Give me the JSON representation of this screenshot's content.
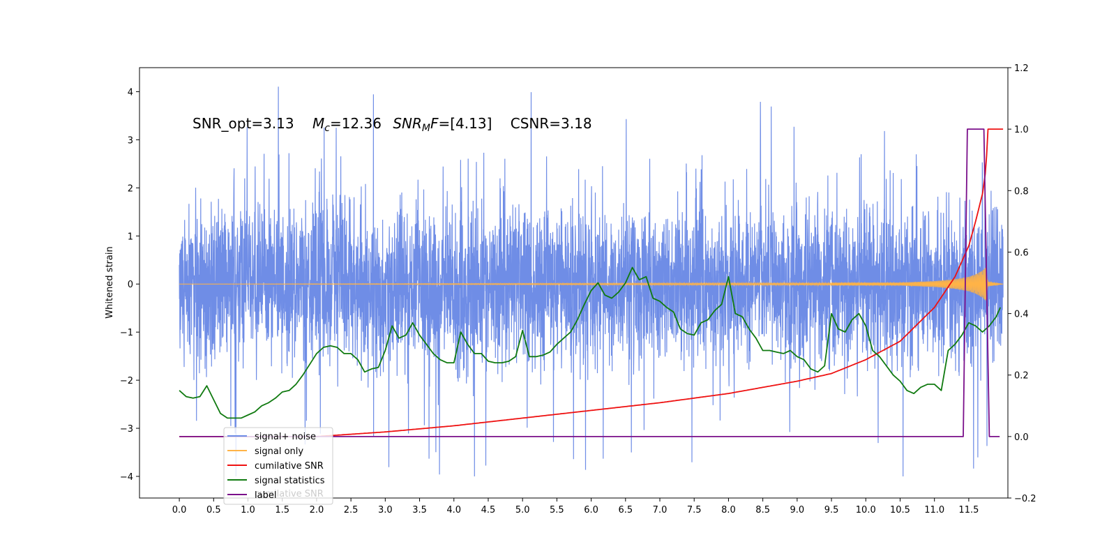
{
  "chart_data": {
    "type": "line",
    "ylabel": "Whitened strain",
    "annotation": "SNR_opt=3.13   $M_c$=12.36  $SNR_MF$=[4.13]   CSNR=3.18",
    "annotation_parts": {
      "snr_opt": "SNR_opt=3.13",
      "mc_sym": "M",
      "mc_sub": "c",
      "mc_val": "=12.36",
      "snrmf_sym": "SNR",
      "snrmf_sub": "M",
      "snrmf_f": "F",
      "snrmf_val": "=[4.13]",
      "csnr": "CSNR=3.18"
    },
    "xlim": [
      -0.58,
      12.07
    ],
    "ylim_left": [
      -4.45,
      4.5
    ],
    "ylim_right": [
      -0.2,
      1.2
    ],
    "xticks": [
      "0.0",
      "0.5",
      "1.0",
      "1.5",
      "2.0",
      "2.5",
      "3.0",
      "3.5",
      "4.0",
      "4.5",
      "5.0",
      "5.5",
      "6.0",
      "6.5",
      "7.0",
      "7.5",
      "8.0",
      "8.5",
      "9.0",
      "9.5",
      "10.0",
      "10.5",
      "11.0",
      "11.5"
    ],
    "yticks_left": [
      "4",
      "3",
      "2",
      "1",
      "0",
      "−1",
      "−2",
      "−3",
      "−4"
    ],
    "yticks_right": [
      "1.2",
      "1.0",
      "0.8",
      "0.6",
      "0.4",
      "0.2",
      "0.0",
      "−0.2"
    ],
    "legend": {
      "placement": "lower-left",
      "entries": [
        "signal+ noise",
        "signal only",
        "cumilative SNR",
        "signal statistics",
        "label"
      ],
      "ghost_text": "cumilative SNR"
    },
    "colors": {
      "noise": "#6f8de6",
      "signal": "#ffb347",
      "signal_fill": "#c8a27a",
      "csnr": "#ee1111",
      "stat": "#107a10",
      "label": "#7a0f8a"
    },
    "series": [
      {
        "name": "signal+ noise",
        "axis": "left",
        "description_range": [
          0.0,
          12.0
        ],
        "envelope": {
          "typical_low": -1.6,
          "typical_high": 1.6,
          "spike_max": 4.12,
          "spike_min": -4.0
        }
      },
      {
        "name": "signal only",
        "axis": "left",
        "x": [
          0.0,
          10.5,
          11.0,
          11.3,
          11.5,
          11.6,
          11.7,
          11.75,
          11.78,
          12.0
        ],
        "amplitude": [
          0.0,
          0.03,
          0.06,
          0.1,
          0.15,
          0.2,
          0.28,
          0.35,
          0.05,
          0.0
        ]
      },
      {
        "name": "cumilative SNR",
        "axis": "right",
        "x": [
          0.0,
          2.0,
          3.0,
          4.0,
          5.0,
          6.0,
          7.0,
          8.0,
          9.0,
          9.5,
          10.0,
          10.5,
          11.0,
          11.3,
          11.5,
          11.6,
          11.7,
          11.75,
          11.78,
          12.0
        ],
        "values": [
          0.0,
          0.0,
          0.015,
          0.035,
          0.06,
          0.085,
          0.11,
          0.14,
          0.18,
          0.205,
          0.25,
          0.31,
          0.42,
          0.52,
          0.62,
          0.7,
          0.79,
          0.87,
          1.0,
          1.0
        ]
      },
      {
        "name": "signal statistics",
        "axis": "right",
        "x": [
          0.0,
          0.1,
          0.2,
          0.3,
          0.4,
          0.5,
          0.6,
          0.7,
          0.8,
          0.9,
          1.0,
          1.1,
          1.2,
          1.3,
          1.4,
          1.5,
          1.6,
          1.7,
          1.8,
          1.9,
          2.0,
          2.1,
          2.2,
          2.3,
          2.4,
          2.5,
          2.6,
          2.7,
          2.8,
          2.9,
          3.0,
          3.1,
          3.2,
          3.3,
          3.4,
          3.5,
          3.6,
          3.7,
          3.8,
          3.9,
          4.0,
          4.1,
          4.2,
          4.3,
          4.4,
          4.5,
          4.6,
          4.7,
          4.8,
          4.9,
          5.0,
          5.1,
          5.2,
          5.3,
          5.4,
          5.5,
          5.6,
          5.7,
          5.8,
          5.9,
          6.0,
          6.1,
          6.2,
          6.3,
          6.4,
          6.5,
          6.6,
          6.7,
          6.8,
          6.9,
          7.0,
          7.1,
          7.2,
          7.3,
          7.4,
          7.5,
          7.6,
          7.7,
          7.8,
          7.9,
          8.0,
          8.1,
          8.2,
          8.3,
          8.4,
          8.5,
          8.6,
          8.7,
          8.8,
          8.9,
          9.0,
          9.1,
          9.2,
          9.3,
          9.4,
          9.5,
          9.6,
          9.7,
          9.8,
          9.9,
          10.0,
          10.1,
          10.2,
          10.3,
          10.4,
          10.5,
          10.6,
          10.7,
          10.8,
          10.9,
          11.0,
          11.1,
          11.2,
          11.3,
          11.4,
          11.5,
          11.6,
          11.7,
          11.8,
          11.9,
          11.96
        ],
        "values": [
          0.15,
          0.13,
          0.125,
          0.13,
          0.165,
          0.12,
          0.075,
          0.06,
          0.06,
          0.06,
          0.07,
          0.08,
          0.1,
          0.11,
          0.125,
          0.145,
          0.15,
          0.17,
          0.2,
          0.235,
          0.27,
          0.29,
          0.295,
          0.29,
          0.27,
          0.27,
          0.25,
          0.21,
          0.22,
          0.225,
          0.28,
          0.36,
          0.32,
          0.33,
          0.37,
          0.33,
          0.3,
          0.27,
          0.25,
          0.24,
          0.24,
          0.34,
          0.3,
          0.27,
          0.27,
          0.245,
          0.24,
          0.24,
          0.245,
          0.26,
          0.345,
          0.26,
          0.26,
          0.265,
          0.275,
          0.3,
          0.32,
          0.34,
          0.38,
          0.43,
          0.475,
          0.5,
          0.46,
          0.45,
          0.47,
          0.5,
          0.55,
          0.51,
          0.52,
          0.45,
          0.44,
          0.42,
          0.405,
          0.35,
          0.335,
          0.33,
          0.37,
          0.38,
          0.41,
          0.43,
          0.52,
          0.4,
          0.39,
          0.35,
          0.32,
          0.28,
          0.28,
          0.275,
          0.27,
          0.28,
          0.26,
          0.25,
          0.22,
          0.21,
          0.23,
          0.4,
          0.35,
          0.34,
          0.38,
          0.4,
          0.36,
          0.28,
          0.26,
          0.23,
          0.2,
          0.18,
          0.15,
          0.14,
          0.16,
          0.17,
          0.17,
          0.15,
          0.28,
          0.3,
          0.33,
          0.37,
          0.36,
          0.34,
          0.36,
          0.39,
          0.42
        ]
      },
      {
        "name": "label",
        "axis": "right",
        "x": [
          0.0,
          11.42,
          11.48,
          11.72,
          11.8,
          11.95
        ],
        "values": [
          0.0,
          0.0,
          1.0,
          1.0,
          0.0,
          0.0
        ]
      }
    ]
  }
}
